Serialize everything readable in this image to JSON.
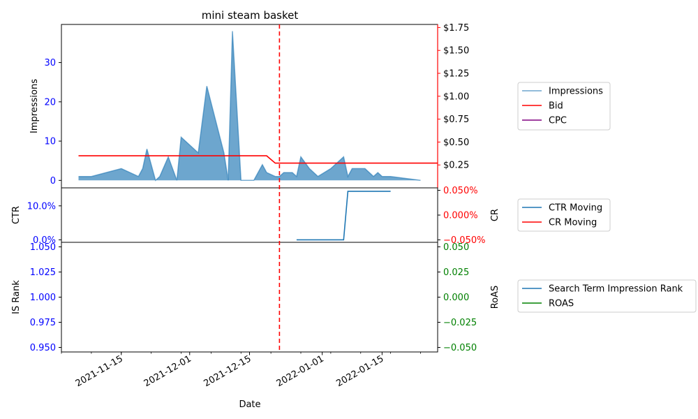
{
  "chart_data": {
    "type": "line",
    "title": "mini steam basket",
    "xlabel": "Date",
    "x_range": [
      "2021-11-01",
      "2022-01-28"
    ],
    "x_ticks": [
      "2021-11-15",
      "2021-12-01",
      "2021-12-15",
      "2022-01-01",
      "2022-01-15"
    ],
    "vline_date": "2021-12-22",
    "colors": {
      "impressions": "#1f77b4",
      "bid": "#ff0000",
      "cpc": "#800080",
      "ctr": "#1f77b4",
      "cr": "#ff0000",
      "rank": "#1f77b4",
      "roas": "#008000",
      "left_tick": "#0000ff",
      "right_tick_cr": "#ff0000",
      "right_tick_roas": "#008000"
    },
    "panels": [
      {
        "id": "top",
        "left_label": "Impressions",
        "left_ylim": [
          -1.9,
          39.7
        ],
        "left_ticks": [
          0,
          10,
          20,
          30
        ],
        "left_tick_labels": [
          "0",
          "10",
          "20",
          "30"
        ],
        "right_ylim": [
          0.0,
          1.7835
        ],
        "right_ticks": [
          0.25,
          0.5,
          0.75,
          1.0,
          1.25,
          1.5,
          1.75
        ],
        "right_tick_labels": [
          "$0.25",
          "$0.50",
          "$0.75",
          "$1.00",
          "$1.25",
          "$1.50",
          "$1.75"
        ],
        "legend": [
          {
            "label": "Impressions",
            "key": "impressions",
            "style": "line-light"
          },
          {
            "label": "Bid",
            "key": "bid",
            "style": "line"
          },
          {
            "label": "CPC",
            "key": "cpc",
            "style": "line"
          }
        ],
        "series": [
          {
            "name": "Impressions",
            "kind": "area",
            "color_key": "impressions",
            "points": [
              [
                "2021-11-05",
                1
              ],
              [
                "2021-11-08",
                1
              ],
              [
                "2021-11-15",
                3
              ],
              [
                "2021-11-19",
                1
              ],
              [
                "2021-11-20",
                3
              ],
              [
                "2021-11-21",
                8
              ],
              [
                "2021-11-23",
                0
              ],
              [
                "2021-11-24",
                1
              ],
              [
                "2021-11-26",
                6
              ],
              [
                "2021-11-28",
                0
              ],
              [
                "2021-11-29",
                11
              ],
              [
                "2021-12-03",
                7
              ],
              [
                "2021-12-05",
                24
              ],
              [
                "2021-12-09",
                7
              ],
              [
                "2021-12-10",
                0
              ],
              [
                "2021-12-11",
                38
              ],
              [
                "2021-12-13",
                0
              ],
              [
                "2021-12-16",
                0
              ],
              [
                "2021-12-18",
                4
              ],
              [
                "2021-12-19",
                2
              ],
              [
                "2021-12-21",
                1
              ],
              [
                "2021-12-22",
                1
              ],
              [
                "2021-12-23",
                2
              ],
              [
                "2021-12-25",
                2
              ],
              [
                "2021-12-26",
                1
              ],
              [
                "2021-12-27",
                6
              ],
              [
                "2021-12-29",
                3
              ],
              [
                "2021-12-31",
                1
              ],
              [
                "2022-01-03",
                3
              ],
              [
                "2022-01-06",
                6
              ],
              [
                "2022-01-07",
                1
              ],
              [
                "2022-01-08",
                3
              ],
              [
                "2022-01-10",
                3
              ],
              [
                "2022-01-11",
                3
              ],
              [
                "2022-01-13",
                1
              ],
              [
                "2022-01-14",
                2
              ],
              [
                "2022-01-15",
                1
              ],
              [
                "2022-01-17",
                1
              ],
              [
                "2022-01-24",
                0
              ]
            ]
          },
          {
            "name": "Bid",
            "kind": "line",
            "axis": "right",
            "color_key": "bid",
            "points": [
              [
                "2021-11-05",
                0.35
              ],
              [
                "2021-12-19",
                0.35
              ],
              [
                "2021-12-21",
                0.27
              ],
              [
                "2022-01-28",
                0.27
              ]
            ]
          }
        ]
      },
      {
        "id": "middle",
        "left_label": "CTR",
        "right_label": "CR",
        "left_ylim": [
          -0.0073,
          0.153
        ],
        "left_ticks": [
          0,
          0.1
        ],
        "left_tick_labels": [
          "0.0%",
          "10.0%"
        ],
        "right_ylim": [
          -0.055,
          0.055
        ],
        "right_ticks": [
          -0.05,
          0.0,
          0.05
        ],
        "right_tick_labels": [
          "−0.050%",
          "0.000%",
          "0.050%"
        ],
        "legend": [
          {
            "label": "CTR Moving",
            "key": "ctr",
            "style": "line"
          },
          {
            "label": "CR Moving",
            "key": "cr",
            "style": "line"
          }
        ],
        "series": [
          {
            "name": "CTR Moving",
            "kind": "line",
            "color_key": "ctr",
            "points": [
              [
                "2021-12-26",
                0.0
              ],
              [
                "2022-01-06",
                0.0
              ],
              [
                "2022-01-07",
                0.143
              ],
              [
                "2022-01-17",
                0.143
              ]
            ]
          }
        ]
      },
      {
        "id": "bottom",
        "left_label": "IS Rank",
        "right_label": "RoAS",
        "left_ylim": [
          0.9455,
          1.0545
        ],
        "left_ticks": [
          0.95,
          0.975,
          1.0,
          1.025,
          1.05
        ],
        "left_tick_labels": [
          "0.950",
          "0.975",
          "1.000",
          "1.025",
          "1.050"
        ],
        "right_ylim": [
          -0.0545,
          0.0545
        ],
        "right_ticks": [
          -0.05,
          -0.025,
          0.0,
          0.025,
          0.05
        ],
        "right_tick_labels": [
          "−0.050",
          "−0.025",
          "0.000",
          "0.025",
          "0.050"
        ],
        "legend": [
          {
            "label": "Search Term Impression Rank",
            "key": "rank",
            "style": "line"
          },
          {
            "label": "ROAS",
            "key": "roas",
            "style": "line"
          }
        ],
        "series": []
      }
    ]
  }
}
